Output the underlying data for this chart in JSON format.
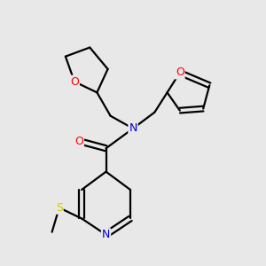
{
  "background_color": "#e8e8e8",
  "atom_colors": {
    "O": "#ff0000",
    "N": "#0000cc",
    "S": "#cccc00",
    "C": "#000000"
  },
  "bond_color": "#000000",
  "bond_width": 1.6,
  "figsize": [
    3.0,
    3.0
  ],
  "dpi": 100,
  "xlim": [
    -1.1,
    1.3
  ],
  "ylim": [
    -1.4,
    1.5
  ]
}
